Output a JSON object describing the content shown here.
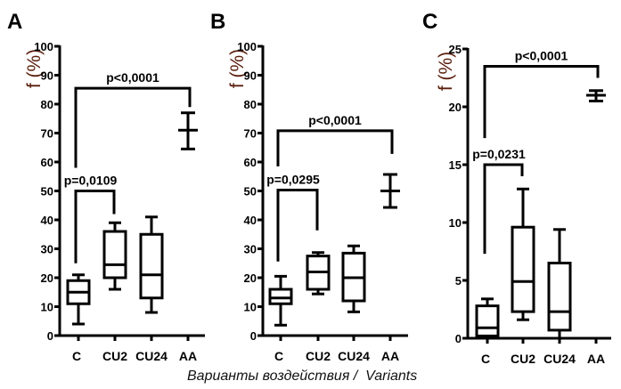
{
  "colors": {
    "axis": "#000000",
    "ylabel": "#5a1e0c",
    "text": "#000000"
  },
  "caption": "Варианты воздействия /  Variants",
  "chart_data": [
    {
      "type": "box",
      "panel": "A",
      "ylabel": "f (%)",
      "ylim": [
        0,
        100
      ],
      "yticks": [
        "0",
        "10",
        "20",
        "30",
        "40",
        "50",
        "60",
        "70",
        "80",
        "90",
        "100"
      ],
      "ytick_values": [
        0,
        10,
        20,
        30,
        40,
        50,
        60,
        70,
        80,
        90,
        100
      ],
      "categories": [
        "C",
        "CU2",
        "CU24",
        "AA"
      ],
      "boxes": [
        {
          "category": "C",
          "whisker_low": 4,
          "q1": 11,
          "median": 15,
          "q3": 19,
          "whisker_high": 21
        },
        {
          "category": "CU2",
          "whisker_low": 16,
          "q1": 20,
          "median": 24.5,
          "q3": 36,
          "whisker_high": 39
        },
        {
          "category": "CU24",
          "whisker_low": 8,
          "q1": 13,
          "median": 21,
          "q3": 35,
          "whisker_high": 41
        },
        {
          "category": "AA",
          "low": 64.5,
          "mean": 71,
          "high": 77,
          "style": "errorbar"
        }
      ],
      "annotations": [
        {
          "text": "p=0,0109",
          "from": "C",
          "to": "CU2",
          "top": 50,
          "left_end": 25,
          "right_end": 42
        },
        {
          "text": "p<0,0001",
          "from": "C",
          "to": "AA",
          "top": 85.5,
          "left_end": 58,
          "right_end": 79
        }
      ]
    },
    {
      "type": "box",
      "panel": "B",
      "ylabel": "f (%)",
      "ylim": [
        0,
        100
      ],
      "yticks": [
        "0",
        "10",
        "20",
        "30",
        "40",
        "50",
        "60",
        "70",
        "80",
        "90",
        "100"
      ],
      "ytick_values": [
        0,
        10,
        20,
        30,
        40,
        50,
        60,
        70,
        80,
        90,
        100
      ],
      "categories": [
        "C",
        "CU2",
        "CU24",
        "AA"
      ],
      "boxes": [
        {
          "category": "C",
          "whisker_low": 3.6,
          "q1": 11,
          "median": 13,
          "q3": 16,
          "whisker_high": 20.5
        },
        {
          "category": "CU2",
          "whisker_low": 14.4,
          "q1": 16,
          "median": 22,
          "q3": 27.5,
          "whisker_high": 28.7
        },
        {
          "category": "CU24",
          "whisker_low": 8.2,
          "q1": 12,
          "median": 20,
          "q3": 28.5,
          "whisker_high": 31
        },
        {
          "category": "AA",
          "low": 44.3,
          "mean": 50,
          "high": 55.7,
          "style": "errorbar"
        }
      ],
      "annotations": [
        {
          "text": "p=0,0295",
          "from": "C",
          "to": "CU2",
          "top": 50.3,
          "left_end": 25.6,
          "right_end": 36.4
        },
        {
          "text": "p<0,0001",
          "from": "C",
          "to": "AA",
          "top": 70.8,
          "left_end": 58.5,
          "right_end": 62.8
        }
      ]
    },
    {
      "type": "box",
      "panel": "C",
      "ylabel": "f (%)",
      "ylim": [
        0,
        25
      ],
      "yticks": [
        "0",
        "5",
        "10",
        "15",
        "20",
        "25"
      ],
      "ytick_values": [
        0,
        5,
        10,
        15,
        20,
        25
      ],
      "categories": [
        "C",
        "CU2",
        "CU24",
        "AA"
      ],
      "boxes": [
        {
          "category": "C",
          "whisker_low": 0,
          "q1": 0.2,
          "median": 0.9,
          "q3": 2.8,
          "whisker_high": 3.4
        },
        {
          "category": "CU2",
          "whisker_low": 1.6,
          "q1": 2.3,
          "median": 4.9,
          "q3": 9.6,
          "whisker_high": 12.9
        },
        {
          "category": "CU24",
          "whisker_low": 0,
          "q1": 0.7,
          "median": 2.3,
          "q3": 6.5,
          "whisker_high": 9.4
        },
        {
          "category": "AA",
          "low": 20.5,
          "mean": 21,
          "high": 21.4,
          "style": "errorbar"
        }
      ],
      "annotations": [
        {
          "text": "p=0,0231",
          "from": "C",
          "to": "CU2",
          "top": 15,
          "left_end": 7.3,
          "right_end": 14
        },
        {
          "text": "p<0,0001",
          "from": "C",
          "to": "AA",
          "top": 23.5,
          "left_end": 17.3,
          "right_end": 22.5
        }
      ]
    }
  ]
}
